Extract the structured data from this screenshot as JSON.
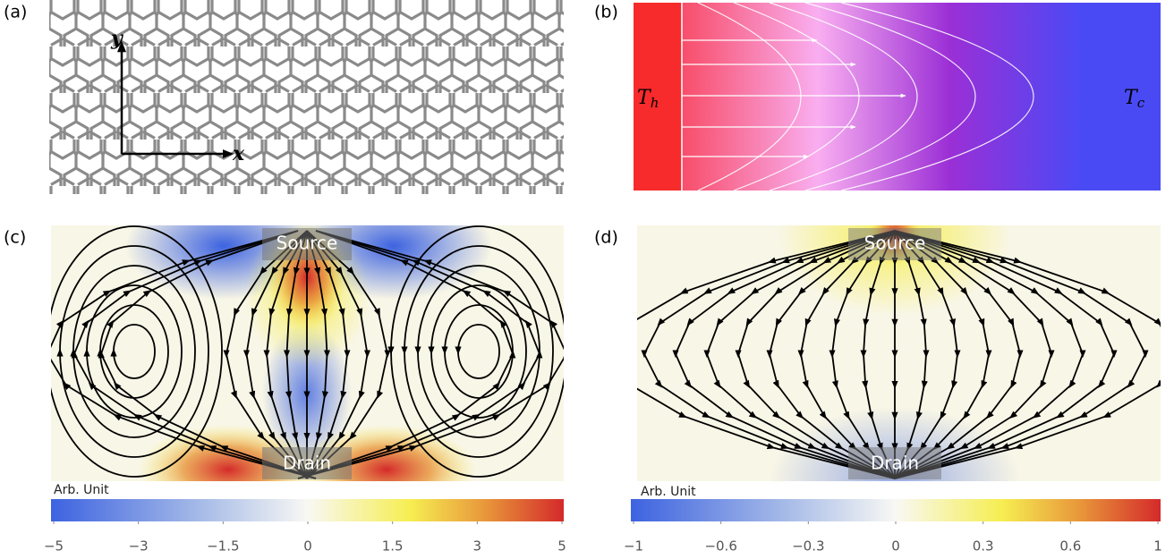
{
  "panels": [
    {
      "label": "(a)",
      "axis_y": "y",
      "axis_x": "x"
    },
    {
      "label": "(b)",
      "hot": {
        "symbol": "T",
        "subscript": "h"
      },
      "cold": {
        "symbol": "T",
        "subscript": "c"
      }
    },
    {
      "label": "(c)",
      "source": "Source",
      "drain": "Drain",
      "colorbar": {
        "title": "Arb. Unit",
        "ticks": [
          {
            "value": -5,
            "label": "−5"
          },
          {
            "value": -3,
            "label": "−3"
          },
          {
            "value": -1.5,
            "label": "−1.5"
          },
          0,
          {
            "value": 1.5,
            "label": "1.5"
          },
          {
            "value": 3,
            "label": "3"
          },
          {
            "value": 5,
            "label": "5"
          }
        ]
      }
    },
    {
      "label": "(d)",
      "source": "Source",
      "drain": "Drain",
      "colorbar": {
        "title": "Arb. Unit",
        "ticks": [
          {
            "value": -1,
            "label": "−1"
          },
          {
            "value": -0.6,
            "label": "−0.6"
          },
          {
            "value": -0.3,
            "label": "−0.3"
          },
          0,
          {
            "value": 0.3,
            "label": "0.3"
          },
          {
            "value": 0.6,
            "label": "0.6"
          },
          {
            "value": 1,
            "label": "1"
          }
        ]
      }
    }
  ]
}
